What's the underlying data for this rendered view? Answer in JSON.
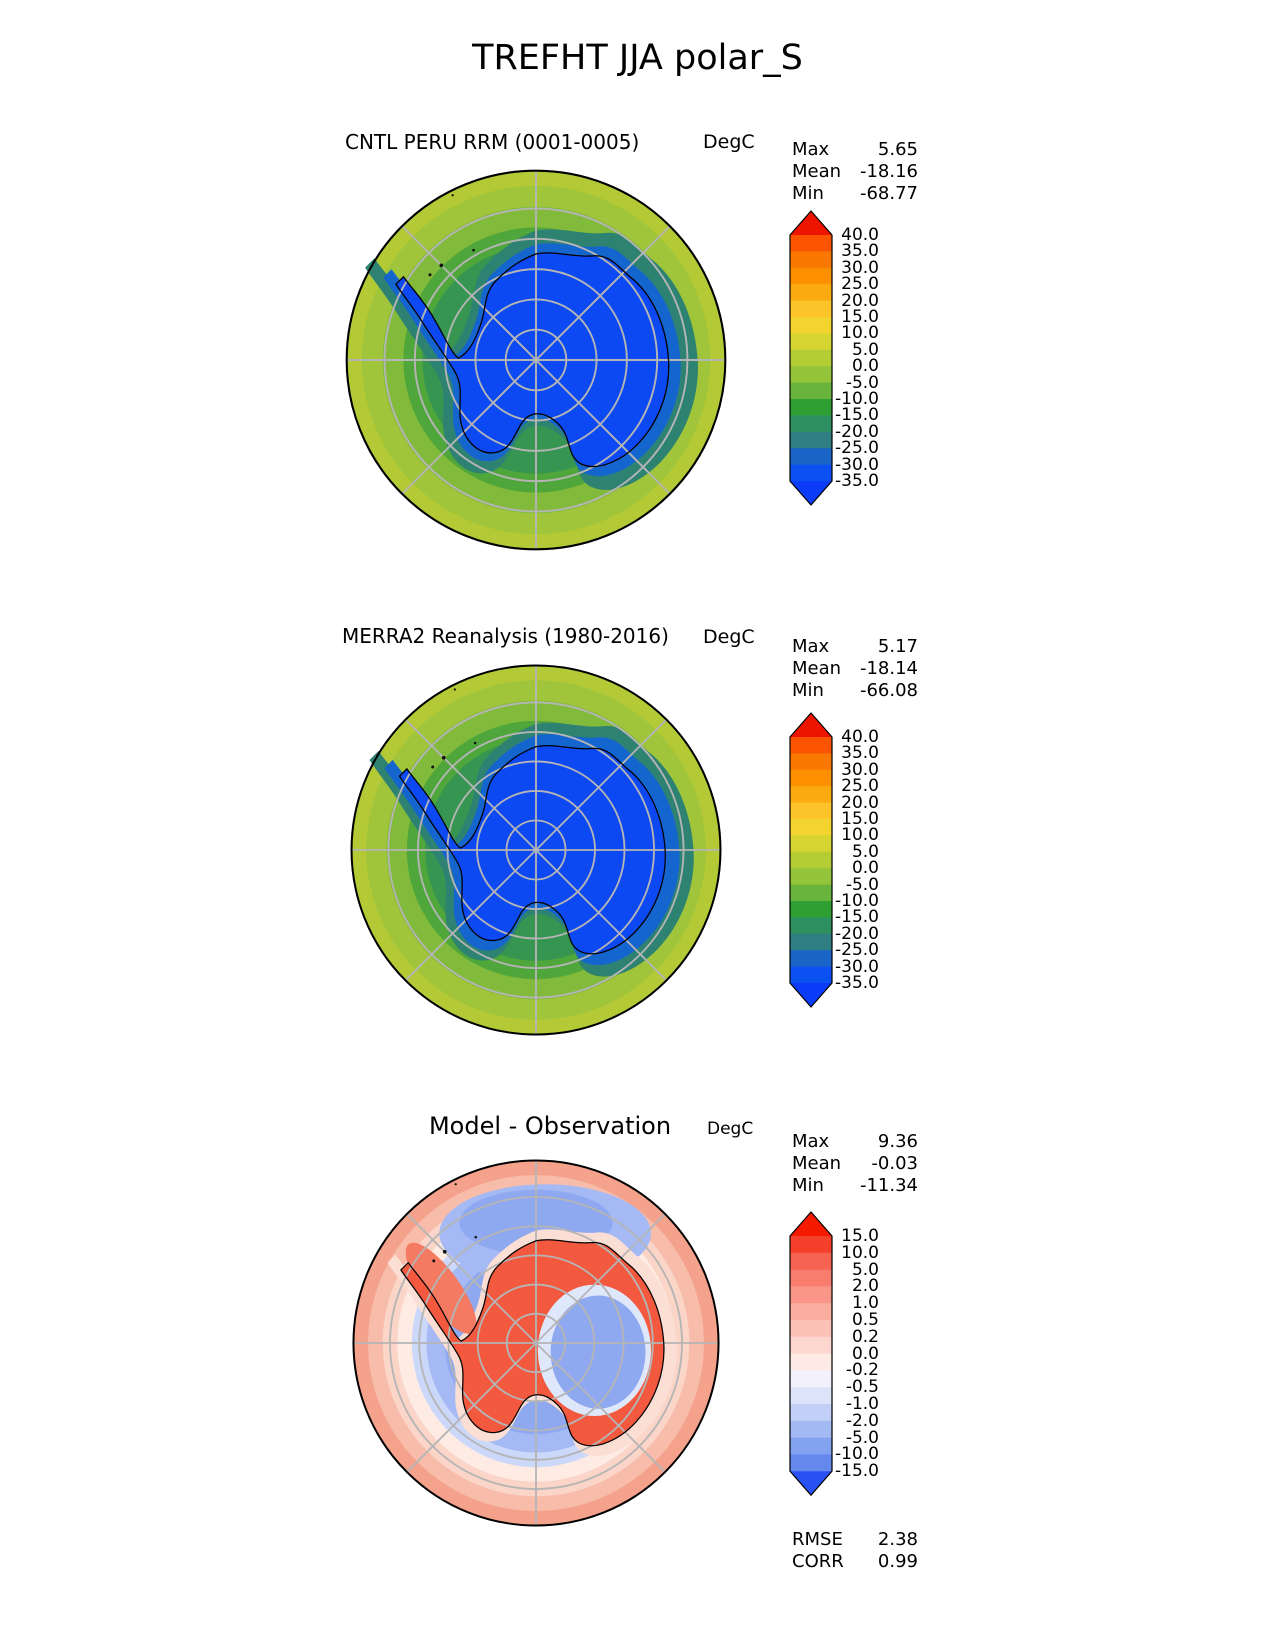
{
  "page_title": "TREFHT JJA polar_S",
  "map_style": {
    "grid_color": "#b5b5b5",
    "coast_color": "#000000",
    "border_color": "#000000",
    "speck_color": "#111111"
  },
  "panels": [
    {
      "id": "model",
      "subtitle": "CNTL PERU RRM (0001-0005)",
      "units": "DegC",
      "stats": [
        {
          "label": "Max",
          "value": "5.65"
        },
        {
          "label": "Mean",
          "value": "-18.16"
        },
        {
          "label": "Min",
          "value": "-68.77"
        }
      ],
      "colorbar": {
        "ticks": [
          "40.0",
          "35.0",
          "30.0",
          "25.0",
          "20.0",
          "15.0",
          "10.0",
          "5.0",
          "0.0",
          "-5.0",
          "-10.0",
          "-15.0",
          "-20.0",
          "-25.0",
          "-30.0",
          "-35.0"
        ],
        "top_arrow": "#ee1500",
        "segments": [
          "#fa5400",
          "#fb7800",
          "#fc9000",
          "#fcaa12",
          "#fdc32a",
          "#f3d32e",
          "#d6d430",
          "#b5cd34",
          "#93c43a",
          "#68b43c",
          "#2f9e33",
          "#2e9060",
          "#2e7e82",
          "#1a64c8",
          "#0b50f0"
        ],
        "bottom_arrow": "#0a3cfa"
      },
      "map_colors": {
        "band0": "#b4c936",
        "band1": "#a0c53a",
        "band2": "#82ba3b",
        "band3": "#4fa73c",
        "band4": "#369551",
        "halo_teal": "#2e8272",
        "halo_blue": "#1565cf",
        "land": "#0c49f2"
      }
    },
    {
      "id": "obs",
      "subtitle": "MERRA2 Reanalysis (1980-2016)",
      "units": "DegC",
      "stats": [
        {
          "label": "Max",
          "value": "5.17"
        },
        {
          "label": "Mean",
          "value": "-18.14"
        },
        {
          "label": "Min",
          "value": "-66.08"
        }
      ],
      "colorbar": {
        "ticks": [
          "40.0",
          "35.0",
          "30.0",
          "25.0",
          "20.0",
          "15.0",
          "10.0",
          "5.0",
          "0.0",
          "-5.0",
          "-10.0",
          "-15.0",
          "-20.0",
          "-25.0",
          "-30.0",
          "-35.0"
        ],
        "top_arrow": "#ee1500",
        "segments": [
          "#fa5400",
          "#fb7800",
          "#fc9000",
          "#fcaa12",
          "#fdc32a",
          "#f3d32e",
          "#d6d430",
          "#b5cd34",
          "#93c43a",
          "#68b43c",
          "#2f9e33",
          "#2e9060",
          "#2e7e82",
          "#1a64c8",
          "#0b50f0"
        ],
        "bottom_arrow": "#0a3cfa"
      },
      "map_colors": {
        "band0": "#b4c936",
        "band1": "#a0c53a",
        "band2": "#82ba3b",
        "band3": "#4fa73c",
        "band4": "#369551",
        "halo_teal": "#2e8272",
        "halo_blue": "#1565cf",
        "land": "#0c49f2"
      }
    },
    {
      "id": "diff",
      "subtitle": "Model - Observation",
      "units": "DegC",
      "stats": [
        {
          "label": "Max",
          "value": "9.36"
        },
        {
          "label": "Mean",
          "value": "-0.03"
        },
        {
          "label": "Min",
          "value": "-11.34"
        }
      ],
      "colorbar": {
        "ticks": [
          "15.0",
          "10.0",
          "5.0",
          "2.0",
          "1.0",
          "0.5",
          "0.2",
          "0.0",
          "-0.2",
          "-0.5",
          "-1.0",
          "-2.0",
          "-5.0",
          "-10.0",
          "-15.0"
        ],
        "top_arrow": "#f31a00",
        "segments": [
          "#f4402b",
          "#f66350",
          "#f87d6e",
          "#f99688",
          "#fbada0",
          "#fcc2b8",
          "#fdd7cf",
          "#feeae5",
          "#f3f1fb",
          "#dde4fa",
          "#c2d0f7",
          "#a3b9f4",
          "#83a2f0",
          "#6488ec"
        ],
        "bottom_arrow": "#2952f5"
      },
      "map_colors": {
        "band0": "#f5a28c",
        "band1": "#f8bcab",
        "band2": "#fbd5c8",
        "band3": "#fdebe4",
        "band4": "#ccd8f9",
        "band5": "#a5baf4",
        "band6": "#8fa9f1",
        "top_lobe": "#a5baf4",
        "top_lobe_inner": "#8fa9f1",
        "fringe": "#fbded4",
        "peninsula_streak": "#f47a62",
        "land": "#f2593e",
        "interior_blue": "#8fa9f1",
        "interior_blue_light": "#dfe7fb"
      },
      "extra_stats": [
        {
          "label": "RMSE",
          "value": "2.38"
        },
        {
          "label": "CORR",
          "value": "0.99"
        }
      ]
    }
  ],
  "chart_data": [
    {
      "type": "heatmap",
      "projection": "south-polar-stereographic",
      "title": "CNTL PERU RRM (0001-0005)",
      "variable": "TREFHT",
      "season": "JJA",
      "units": "DegC",
      "stats": {
        "max": 5.65,
        "mean": -18.16,
        "min": -68.77
      },
      "contour_levels": [
        -35,
        -30,
        -25,
        -20,
        -15,
        -10,
        -5,
        0,
        5,
        10,
        15,
        20,
        25,
        30,
        35,
        40
      ],
      "legend_position": "right"
    },
    {
      "type": "heatmap",
      "projection": "south-polar-stereographic",
      "title": "MERRA2 Reanalysis (1980-2016)",
      "variable": "TREFHT",
      "season": "JJA",
      "units": "DegC",
      "stats": {
        "max": 5.17,
        "mean": -18.14,
        "min": -66.08
      },
      "contour_levels": [
        -35,
        -30,
        -25,
        -20,
        -15,
        -10,
        -5,
        0,
        5,
        10,
        15,
        20,
        25,
        30,
        35,
        40
      ],
      "legend_position": "right"
    },
    {
      "type": "heatmap",
      "projection": "south-polar-stereographic",
      "title": "Model - Observation",
      "variable": "TREFHT difference",
      "season": "JJA",
      "units": "DegC",
      "stats": {
        "max": 9.36,
        "mean": -0.03,
        "min": -11.34,
        "rmse": 2.38,
        "corr": 0.99
      },
      "contour_levels": [
        -15,
        -10,
        -5,
        -2,
        -1,
        -0.5,
        -0.2,
        0,
        0.2,
        0.5,
        1,
        2,
        5,
        10,
        15
      ],
      "legend_position": "right"
    }
  ]
}
